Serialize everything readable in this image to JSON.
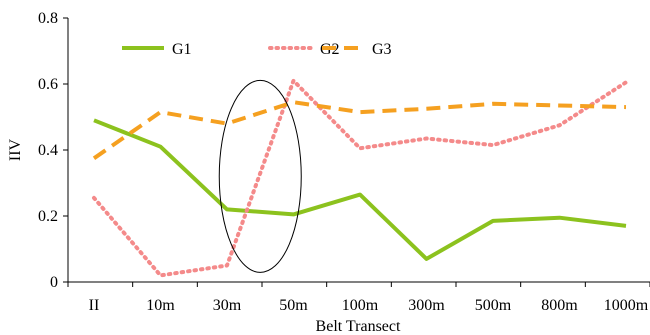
{
  "chart_data": {
    "type": "line",
    "categories": [
      "II",
      "10m",
      "30m",
      "50m",
      "100m",
      "300m",
      "500m",
      "800m",
      "1000m"
    ],
    "xlabel": "Belt Transect",
    "ylabel": "IIV",
    "ylim": [
      0,
      0.8
    ],
    "yticks": [
      0,
      0.2,
      0.4,
      0.6,
      0.8
    ],
    "ytick_labels": [
      "0",
      "0.2",
      "0.4",
      "0.6",
      "0.8"
    ],
    "grid": false,
    "legend_position": "top",
    "series": [
      {
        "name": "G1",
        "values": [
          0.49,
          0.41,
          0.22,
          0.205,
          0.265,
          0.07,
          0.185,
          0.195,
          0.17
        ],
        "color": "#8cc21e",
        "style": "solid"
      },
      {
        "name": "G2",
        "values": [
          0.255,
          0.02,
          0.05,
          0.61,
          0.405,
          0.435,
          0.415,
          0.475,
          0.605
        ],
        "color": "#f48a8a",
        "style": "dotted"
      },
      {
        "name": "G3",
        "values": [
          0.375,
          0.515,
          0.48,
          0.545,
          0.515,
          0.525,
          0.54,
          0.535,
          0.53
        ],
        "color": "#f5a020",
        "style": "dashed"
      }
    ],
    "annotation": {
      "shape": "ellipse",
      "center_between": [
        "30m",
        "50m"
      ],
      "y_center": 0.32
    }
  }
}
